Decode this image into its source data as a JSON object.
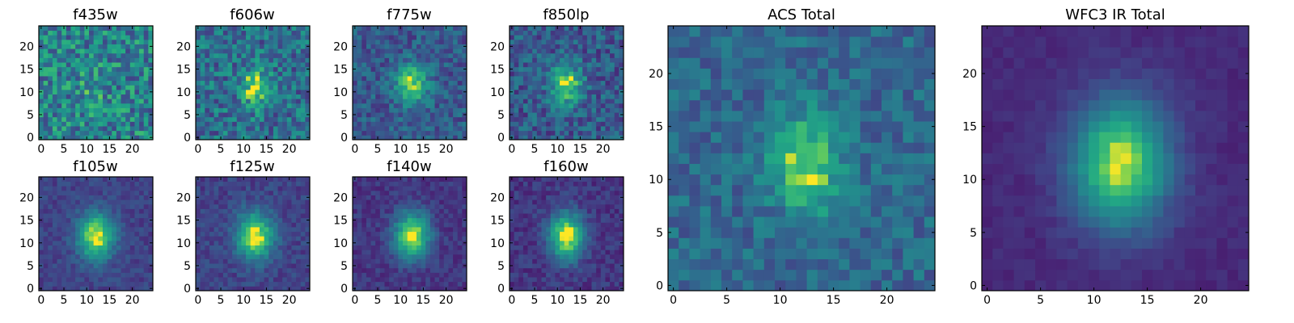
{
  "colormap": "viridis",
  "chart_data": [
    {
      "type": "heatmap",
      "title": "f435w",
      "grid_size": 25,
      "xticks": [
        0,
        5,
        10,
        15,
        20
      ],
      "yticks": [
        0,
        5,
        10,
        15,
        20
      ],
      "peak_center": [
        11.5,
        11
      ],
      "peak_sigma": [
        2.2,
        3.0
      ],
      "peak_strength": 0.15,
      "noise": 0.6,
      "background": 0.55
    },
    {
      "type": "heatmap",
      "title": "f606w",
      "grid_size": 25,
      "xticks": [
        0,
        5,
        10,
        15,
        20
      ],
      "yticks": [
        0,
        5,
        10,
        15,
        20
      ],
      "peak_center": [
        12.5,
        11
      ],
      "peak_sigma": [
        2.2,
        3.0
      ],
      "peak_strength": 0.45,
      "noise": 0.5,
      "background": 0.45
    },
    {
      "type": "heatmap",
      "title": "f775w",
      "grid_size": 25,
      "xticks": [
        0,
        5,
        10,
        15,
        20
      ],
      "yticks": [
        0,
        5,
        10,
        15,
        20
      ],
      "peak_center": [
        12.5,
        11.5
      ],
      "peak_sigma": [
        2.4,
        3.2
      ],
      "peak_strength": 0.6,
      "noise": 0.35,
      "background": 0.35
    },
    {
      "type": "heatmap",
      "title": "f850lp",
      "grid_size": 25,
      "xticks": [
        0,
        5,
        10,
        15,
        20
      ],
      "yticks": [
        0,
        5,
        10,
        15,
        20
      ],
      "peak_center": [
        12,
        11.5
      ],
      "peak_sigma": [
        2.4,
        3.2
      ],
      "peak_strength": 0.6,
      "noise": 0.4,
      "background": 0.35
    },
    {
      "type": "heatmap",
      "title": "f105w",
      "grid_size": 25,
      "xticks": [
        0,
        5,
        10,
        15,
        20
      ],
      "yticks": [
        0,
        5,
        10,
        15,
        20
      ],
      "peak_center": [
        12,
        11.5
      ],
      "peak_sigma": [
        2.8,
        3.6
      ],
      "peak_strength": 0.8,
      "noise": 0.18,
      "background": 0.25
    },
    {
      "type": "heatmap",
      "title": "f125w",
      "grid_size": 25,
      "xticks": [
        0,
        5,
        10,
        15,
        20
      ],
      "yticks": [
        0,
        5,
        10,
        15,
        20
      ],
      "peak_center": [
        12.5,
        11.5
      ],
      "peak_sigma": [
        2.8,
        3.6
      ],
      "peak_strength": 0.8,
      "noise": 0.2,
      "background": 0.25
    },
    {
      "type": "heatmap",
      "title": "f140w",
      "grid_size": 25,
      "xticks": [
        0,
        5,
        10,
        15,
        20
      ],
      "yticks": [
        0,
        5,
        10,
        15,
        20
      ],
      "peak_center": [
        12.5,
        11.5
      ],
      "peak_sigma": [
        2.7,
        3.6
      ],
      "peak_strength": 0.85,
      "noise": 0.18,
      "background": 0.2
    },
    {
      "type": "heatmap",
      "title": "f160w",
      "grid_size": 25,
      "xticks": [
        0,
        5,
        10,
        15,
        20
      ],
      "yticks": [
        0,
        5,
        10,
        15,
        20
      ],
      "peak_center": [
        12,
        11.5
      ],
      "peak_sigma": [
        2.7,
        3.6
      ],
      "peak_strength": 0.85,
      "noise": 0.2,
      "background": 0.2
    },
    {
      "type": "heatmap",
      "title": "ACS Total",
      "grid_size": 25,
      "xticks": [
        0,
        5,
        10,
        15,
        20
      ],
      "yticks": [
        0,
        5,
        10,
        15,
        20
      ],
      "peak_center": [
        12.5,
        11.5
      ],
      "peak_sigma": [
        2.3,
        3.2
      ],
      "peak_strength": 0.55,
      "noise": 0.3,
      "background": 0.42
    },
    {
      "type": "heatmap",
      "title": "WFC3 IR Total",
      "grid_size": 25,
      "xticks": [
        0,
        5,
        10,
        15,
        20
      ],
      "yticks": [
        0,
        5,
        10,
        15,
        20
      ],
      "peak_center": [
        12.5,
        11.5
      ],
      "peak_sigma": [
        3.2,
        4.2
      ],
      "peak_strength": 0.85,
      "noise": 0.08,
      "background": 0.15
    }
  ]
}
